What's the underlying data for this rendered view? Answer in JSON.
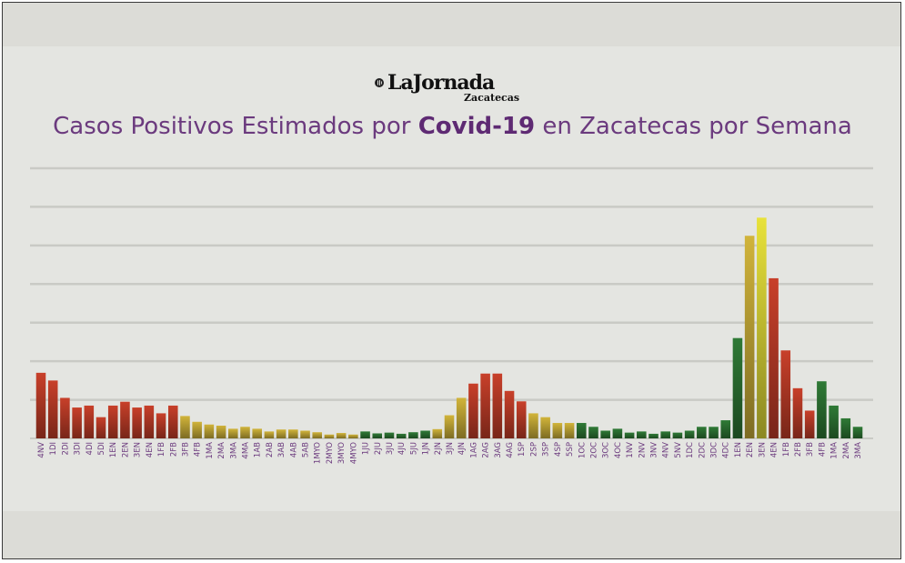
{
  "logo": {
    "name": "LaJornada",
    "subtitle": "Zacatecas"
  },
  "title": {
    "prefix": "Casos Positivos Estimados por ",
    "bold": "Covid-19",
    "suffix": " en Zacatecas por Semana"
  },
  "chart_data": {
    "type": "bar",
    "title": "Casos Positivos Estimados por Covid-19 en Zacatecas por Semana",
    "xlabel": "",
    "ylabel": "",
    "grid": true,
    "ylim": [
      0,
      7
    ],
    "categories": [
      "4NV",
      "1DI",
      "2DI",
      "3DI",
      "4DI",
      "5DI",
      "1EN",
      "2EN",
      "3EN",
      "4EN",
      "1FB",
      "2FB",
      "3FB",
      "4FB",
      "1MA",
      "2MA",
      "3MA",
      "4MA",
      "1AB",
      "2AB",
      "3AB",
      "4AB",
      "5AB",
      "1MYO",
      "2MYO",
      "3MYO",
      "4MYO",
      "1JU",
      "2JU",
      "3JU",
      "4JU",
      "5JU",
      "1JN",
      "2JN",
      "3JN",
      "4JN",
      "1AG",
      "2AG",
      "3AG",
      "4AG",
      "1SP",
      "2SP",
      "3SP",
      "4SP",
      "5SP",
      "1OC",
      "2OC",
      "3OC",
      "4OC",
      "1NV",
      "2NV",
      "3NV",
      "4NV",
      "5NV",
      "1DC",
      "2DC",
      "3DC",
      "4DC",
      "1EN",
      "2EN",
      "3EN",
      "4EN",
      "1FB",
      "2FB",
      "3FB",
      "4FB",
      "1MA",
      "2MA",
      "3MA"
    ],
    "values": [
      1.7,
      1.5,
      1.05,
      0.8,
      0.85,
      0.55,
      0.85,
      0.95,
      0.8,
      0.85,
      0.65,
      0.85,
      0.58,
      0.43,
      0.36,
      0.33,
      0.25,
      0.3,
      0.25,
      0.18,
      0.23,
      0.23,
      0.2,
      0.16,
      0.1,
      0.14,
      0.1,
      0.18,
      0.13,
      0.15,
      0.12,
      0.16,
      0.2,
      0.24,
      0.6,
      1.05,
      1.42,
      1.68,
      1.68,
      1.23,
      0.96,
      0.65,
      0.55,
      0.4,
      0.4,
      0.4,
      0.3,
      0.2,
      0.25,
      0.15,
      0.18,
      0.12,
      0.18,
      0.15,
      0.2,
      0.3,
      0.3,
      0.47,
      2.6,
      5.25,
      5.72,
      4.15,
      2.28,
      1.3,
      0.72,
      1.48,
      0.85,
      0.52,
      0.3
    ],
    "colors": [
      "#c8402a",
      "#c8402a",
      "#c8402a",
      "#c8402a",
      "#c8402a",
      "#c8402a",
      "#c8402a",
      "#c8402a",
      "#c8402a",
      "#c8402a",
      "#c8402a",
      "#c8402a",
      "#d1b43a",
      "#d1b43a",
      "#d1b43a",
      "#d1b43a",
      "#d1b43a",
      "#d1b43a",
      "#d1b43a",
      "#d1b43a",
      "#d1b43a",
      "#d1b43a",
      "#d1b43a",
      "#d1b43a",
      "#d1b43a",
      "#d1b43a",
      "#d1b43a",
      "#2f7a36",
      "#2f7a36",
      "#2f7a36",
      "#2f7a36",
      "#2f7a36",
      "#2f7a36",
      "#d1b43a",
      "#d1b43a",
      "#d1b43a",
      "#c8402a",
      "#c8402a",
      "#c8402a",
      "#c8402a",
      "#c8402a",
      "#d1b43a",
      "#d1b43a",
      "#d1b43a",
      "#d1b43a",
      "#2f7a36",
      "#2f7a36",
      "#2f7a36",
      "#2f7a36",
      "#2f7a36",
      "#2f7a36",
      "#2f7a36",
      "#2f7a36",
      "#2f7a36",
      "#2f7a36",
      "#2f7a36",
      "#2f7a36",
      "#2f7a36",
      "#2f7a36",
      "#d1b43a",
      "#e8e23a",
      "#c8402a",
      "#c8402a",
      "#c8402a",
      "#c8402a",
      "#2f7a36",
      "#2f7a36",
      "#2f7a36",
      "#2f7a36"
    ]
  },
  "style": {
    "title_color": "#6b3a7e",
    "label_color": "#6b3a7e",
    "grid_color": "#c9cac5"
  }
}
